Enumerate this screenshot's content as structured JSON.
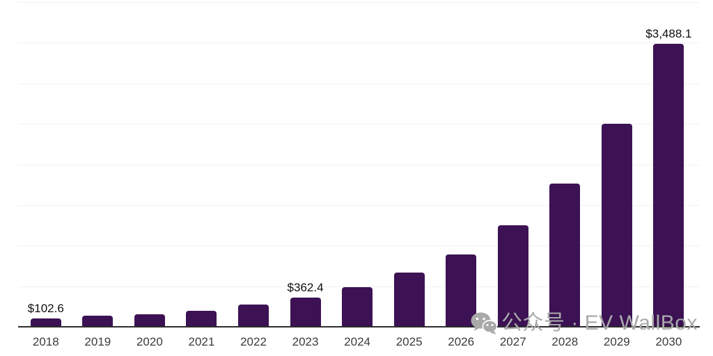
{
  "chart_data": {
    "type": "bar",
    "categories": [
      "2018",
      "2019",
      "2020",
      "2021",
      "2022",
      "2023",
      "2024",
      "2025",
      "2026",
      "2027",
      "2028",
      "2029",
      "2030"
    ],
    "values": [
      102.6,
      135,
      155,
      195,
      270,
      362.4,
      490,
      665,
      890,
      1250,
      1765,
      2500,
      3488.1
    ],
    "value_labels": [
      "$102.6",
      "",
      "",
      "",
      "",
      "$362.4",
      "",
      "",
      "",
      "",
      "",
      "",
      "$3,488.1"
    ],
    "labeled_values": {
      "2018": "$102.6",
      "2023": "$362.4",
      "2030": "$3,488.1"
    },
    "title": "",
    "xlabel": "",
    "ylabel": "",
    "ylim": [
      0,
      4000
    ],
    "gridline_interval": 500,
    "grid": "horizontal-only",
    "legend": "none",
    "bar_color": "#3c1254",
    "axis_color": "#2d2d2d",
    "gridline_color": "#f1f1f1",
    "value_label_color": "#0d0d0d",
    "tick_label_color": "#3b3b3b"
  },
  "watermark": {
    "icon": "wechat-icon",
    "text": "公众号 · EV WallBox",
    "color": "#a9a9a9"
  }
}
